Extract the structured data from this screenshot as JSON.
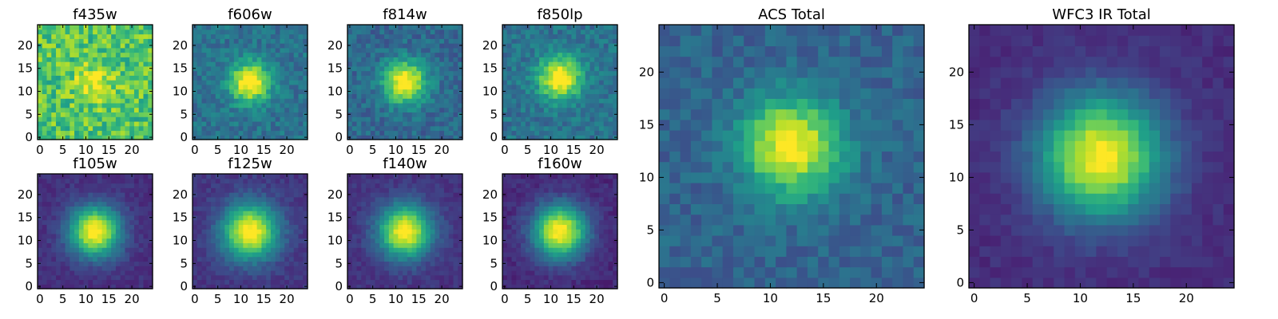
{
  "colors": {
    "colormap": "viridis",
    "stops": [
      "#440154",
      "#482878",
      "#3e4989",
      "#31688e",
      "#26828e",
      "#1f9e89",
      "#35b779",
      "#6ece58",
      "#b5de2b",
      "#fde725"
    ],
    "frame": "#000000",
    "background": "#ffffff"
  },
  "chart_data": [
    {
      "type": "heatmap",
      "title": "f435w",
      "size": 25,
      "center": [
        12,
        12
      ],
      "sigma": 3.0,
      "peak": 0.25,
      "background": 0.72,
      "noise": 0.35,
      "seed": 11,
      "xlim": [
        0,
        24
      ],
      "ylim": [
        0,
        24
      ],
      "xticks": [
        0,
        5,
        10,
        15,
        20
      ],
      "yticks": [
        0,
        5,
        10,
        15,
        20
      ]
    },
    {
      "type": "heatmap",
      "title": "f606w",
      "size": 25,
      "center": [
        12,
        12
      ],
      "sigma": 3.0,
      "peak": 0.72,
      "background": 0.38,
      "noise": 0.2,
      "seed": 23,
      "xlim": [
        0,
        24
      ],
      "ylim": [
        0,
        24
      ],
      "xticks": [
        0,
        5,
        10,
        15,
        20
      ],
      "yticks": [
        0,
        5,
        10,
        15,
        20
      ]
    },
    {
      "type": "heatmap",
      "title": "f814w",
      "size": 25,
      "center": [
        12,
        12
      ],
      "sigma": 3.2,
      "peak": 0.72,
      "background": 0.34,
      "noise": 0.2,
      "seed": 37,
      "xlim": [
        0,
        24
      ],
      "ylim": [
        0,
        24
      ],
      "xticks": [
        0,
        5,
        10,
        15,
        20
      ],
      "yticks": [
        0,
        5,
        10,
        15,
        20
      ]
    },
    {
      "type": "heatmap",
      "title": "f850lp",
      "size": 25,
      "center": [
        12,
        13
      ],
      "sigma": 3.2,
      "peak": 0.7,
      "background": 0.38,
      "noise": 0.2,
      "seed": 41,
      "xlim": [
        0,
        24
      ],
      "ylim": [
        0,
        24
      ],
      "xticks": [
        0,
        5,
        10,
        15,
        20
      ],
      "yticks": [
        0,
        5,
        10,
        15,
        20
      ]
    },
    {
      "type": "heatmap",
      "title": "f105w",
      "size": 25,
      "center": [
        12,
        12
      ],
      "sigma": 3.8,
      "peak": 0.9,
      "background": 0.14,
      "noise": 0.1,
      "seed": 53,
      "xlim": [
        0,
        24
      ],
      "ylim": [
        0,
        24
      ],
      "xticks": [
        0,
        5,
        10,
        15,
        20
      ],
      "yticks": [
        0,
        5,
        10,
        15,
        20
      ]
    },
    {
      "type": "heatmap",
      "title": "f125w",
      "size": 25,
      "center": [
        12,
        12
      ],
      "sigma": 4.2,
      "peak": 0.88,
      "background": 0.16,
      "noise": 0.1,
      "seed": 67,
      "xlim": [
        0,
        24
      ],
      "ylim": [
        0,
        24
      ],
      "xticks": [
        0,
        5,
        10,
        15,
        20
      ],
      "yticks": [
        0,
        5,
        10,
        15,
        20
      ]
    },
    {
      "type": "heatmap",
      "title": "f140w",
      "size": 25,
      "center": [
        12,
        12
      ],
      "sigma": 4.0,
      "peak": 0.88,
      "background": 0.15,
      "noise": 0.1,
      "seed": 79,
      "xlim": [
        0,
        24
      ],
      "ylim": [
        0,
        24
      ],
      "xticks": [
        0,
        5,
        10,
        15,
        20
      ],
      "yticks": [
        0,
        5,
        10,
        15,
        20
      ]
    },
    {
      "type": "heatmap",
      "title": "f160w",
      "size": 25,
      "center": [
        12,
        12
      ],
      "sigma": 4.0,
      "peak": 0.92,
      "background": 0.12,
      "noise": 0.1,
      "seed": 83,
      "xlim": [
        0,
        24
      ],
      "ylim": [
        0,
        24
      ],
      "xticks": [
        0,
        5,
        10,
        15,
        20
      ],
      "yticks": [
        0,
        5,
        10,
        15,
        20
      ]
    },
    {
      "type": "heatmap",
      "title": "ACS Total",
      "size": 25,
      "center": [
        12,
        13
      ],
      "sigma": 3.2,
      "peak": 0.7,
      "background": 0.32,
      "noise": 0.16,
      "seed": 97,
      "xlim": [
        0,
        24
      ],
      "ylim": [
        0,
        24
      ],
      "xticks": [
        0,
        5,
        10,
        15,
        20
      ],
      "yticks": [
        0,
        5,
        10,
        15,
        20
      ]
    },
    {
      "type": "heatmap",
      "title": "WFC3 IR Total",
      "size": 25,
      "center": [
        12,
        12
      ],
      "sigma": 4.0,
      "peak": 0.88,
      "background": 0.13,
      "noise": 0.08,
      "seed": 101,
      "xlim": [
        0,
        24
      ],
      "ylim": [
        0,
        24
      ],
      "xticks": [
        0,
        5,
        10,
        15,
        20
      ],
      "yticks": [
        0,
        5,
        10,
        15,
        20
      ]
    }
  ]
}
